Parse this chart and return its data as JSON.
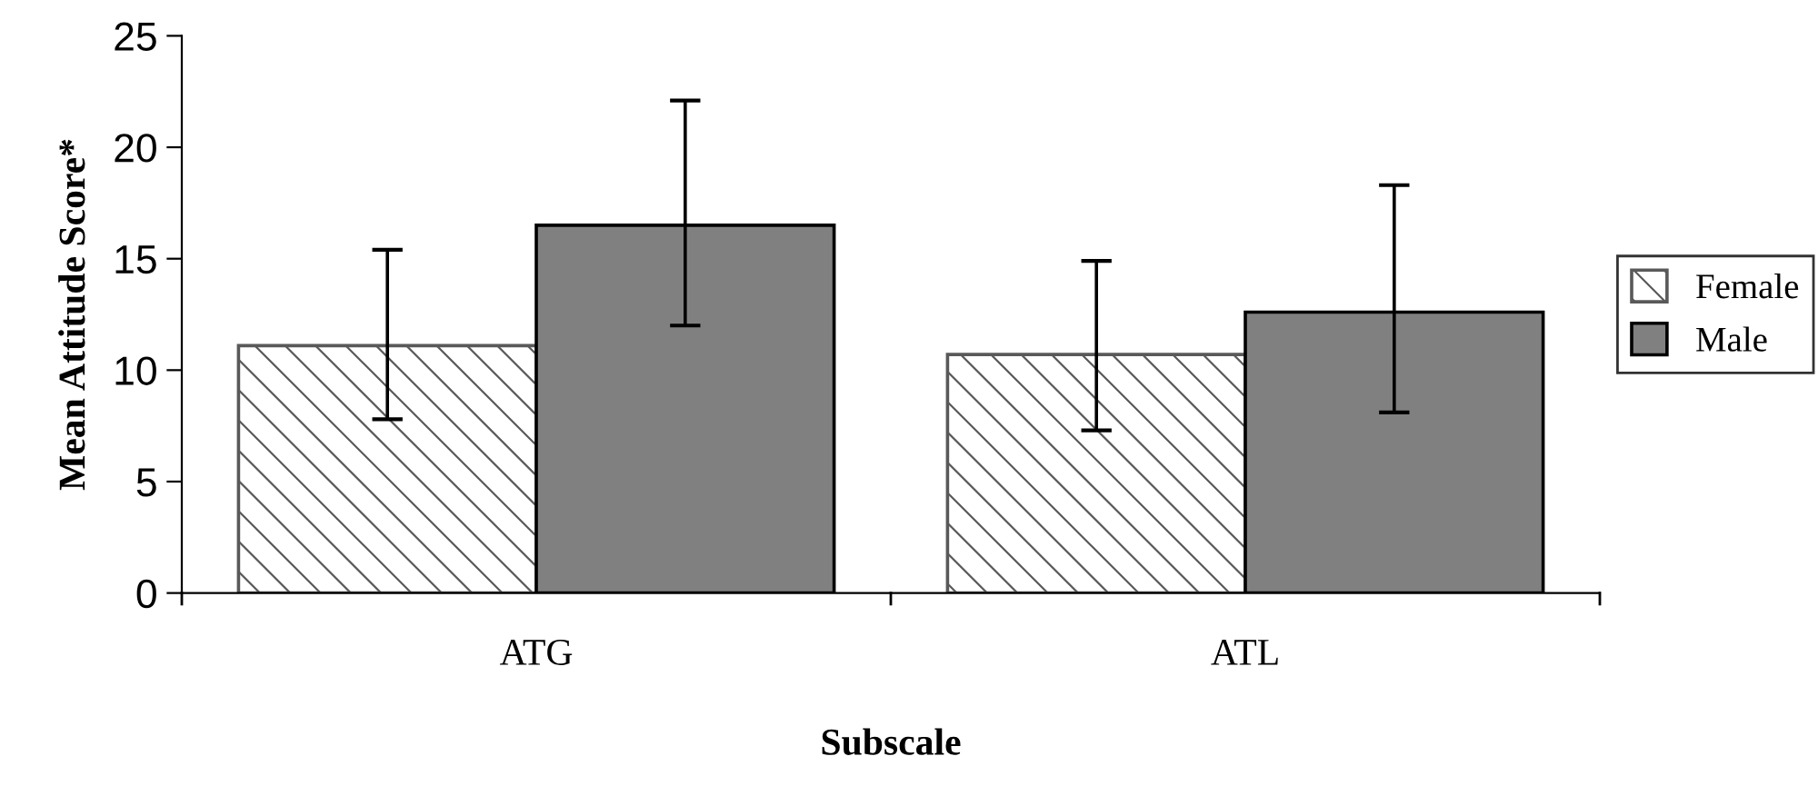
{
  "chart_data": {
    "type": "bar",
    "xlabel": "Subscale",
    "ylabel": "Mean Attitude Score*",
    "categories": [
      "ATG",
      "ATL"
    ],
    "series": [
      {
        "name": "Female",
        "color": "#595959",
        "values": [
          11.1,
          10.7
        ],
        "errors": [
          [
            7.8,
            15.4
          ],
          [
            7.3,
            14.9
          ]
        ]
      },
      {
        "name": "Male",
        "color": "#808080",
        "values": [
          16.5,
          12.6
        ],
        "errors": [
          [
            12.0,
            22.1
          ],
          [
            8.1,
            18.3
          ]
        ]
      }
    ],
    "ylim": [
      0,
      25
    ],
    "yticks": [
      0,
      5,
      10,
      15,
      20,
      25
    ],
    "grid": false,
    "legend": "right"
  }
}
